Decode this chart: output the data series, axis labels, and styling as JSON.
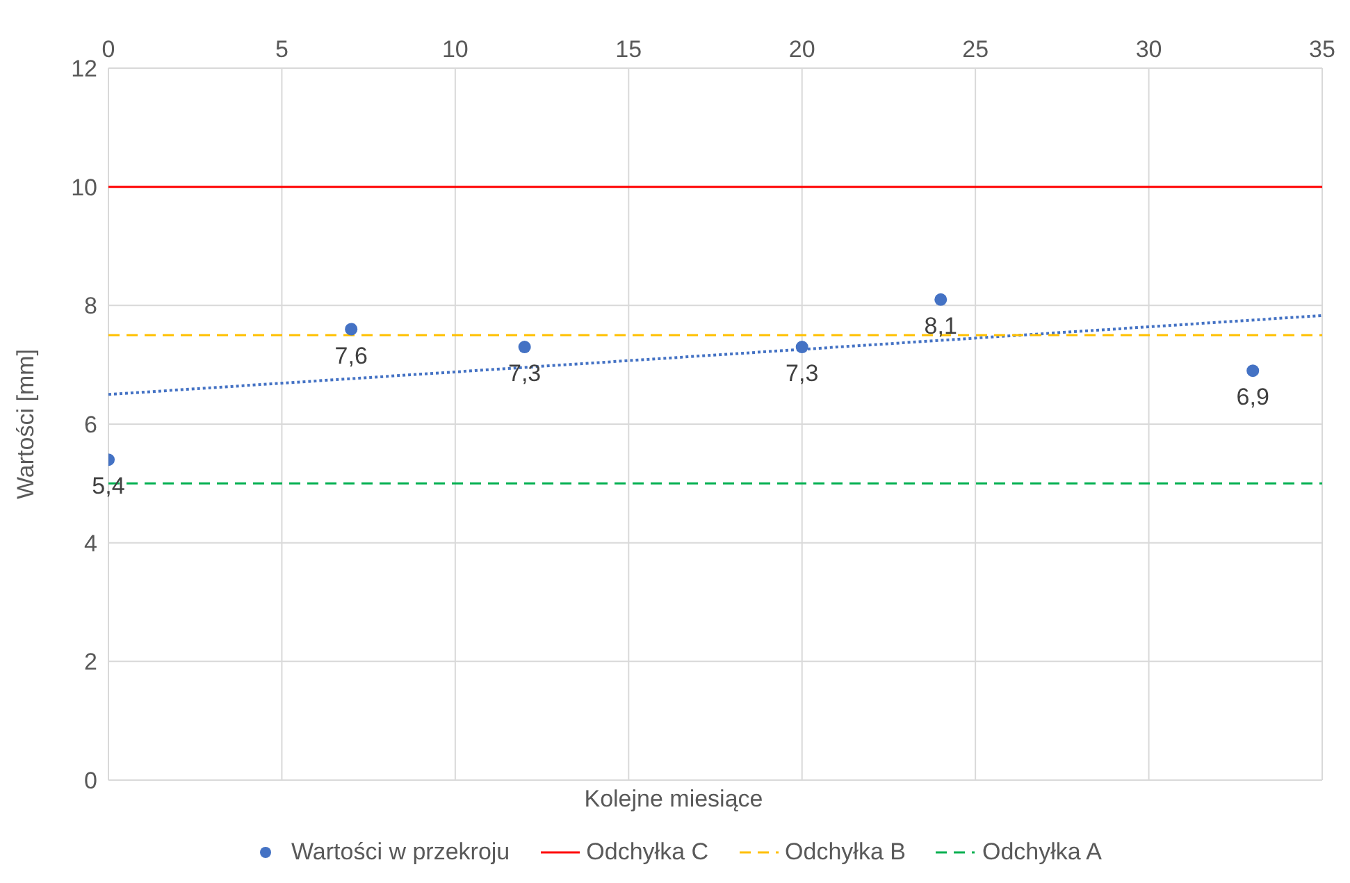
{
  "chart_data": {
    "type": "scatter",
    "xlabel": "Kolejne miesiące",
    "ylabel": "Wartości [mm]",
    "xlim": [
      0,
      35
    ],
    "xticks": [
      0,
      5,
      10,
      15,
      20,
      25,
      30,
      35
    ],
    "ylim": [
      0,
      12
    ],
    "yticks": [
      0,
      2,
      4,
      6,
      8,
      10,
      12
    ],
    "grid": true,
    "legend": "bottom",
    "series": [
      {
        "name": "Wartości w przekroju",
        "marker": "circle",
        "color": "#4472c4",
        "x": [
          0,
          7,
          12,
          20,
          24,
          33
        ],
        "values": [
          5.4,
          7.6,
          7.3,
          7.3,
          8.1,
          6.9
        ],
        "value_labels": [
          "5,4",
          "7,6",
          "7,3",
          "7,3",
          "8,1",
          "6,9"
        ]
      },
      {
        "type": "line",
        "color": "#4472c4",
        "line_style": "dotted",
        "x": [
          0,
          35
        ],
        "values": [
          6.5,
          7.83
        ]
      },
      {
        "name": "Odchyłka C",
        "type": "line",
        "color": "#ff0000",
        "line_style": "solid",
        "x": [
          0,
          35
        ],
        "values": [
          10,
          10
        ]
      },
      {
        "name": "Odchyłka B",
        "type": "line",
        "color": "#ffc000",
        "line_style": "dashed",
        "x": [
          0,
          35
        ],
        "values": [
          7.5,
          7.5
        ]
      },
      {
        "name": "Odchyłka A",
        "type": "line",
        "color": "#00b050",
        "line_style": "dashed",
        "x": [
          0,
          35
        ],
        "values": [
          5,
          5
        ]
      }
    ]
  }
}
